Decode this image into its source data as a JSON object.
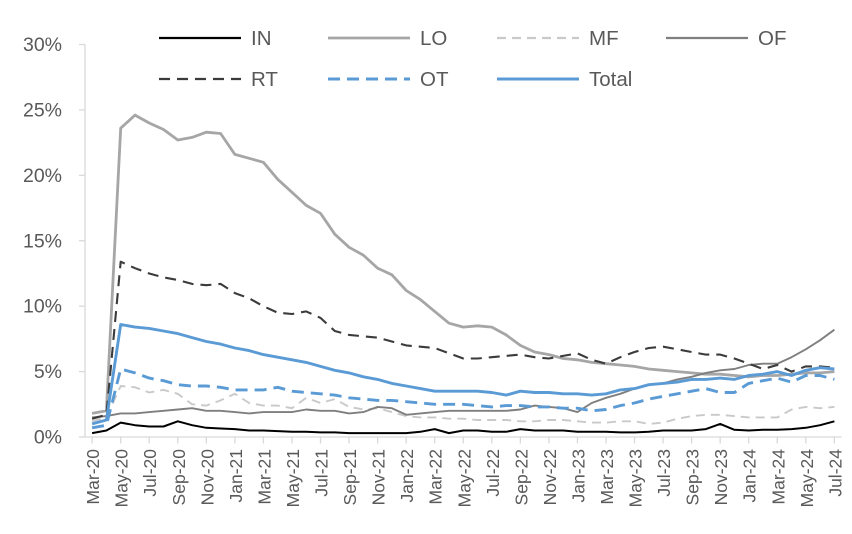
{
  "page": {
    "background": "#FFFFFF"
  },
  "colors": {
    "axis_line": "#D9D9D9",
    "tick_label": "#595959",
    "legend_label": "#595959"
  },
  "chart_data": {
    "type": "line",
    "title": "",
    "xlabel": "",
    "ylabel": "",
    "ylim": [
      0,
      30
    ],
    "yticks": [
      0,
      5,
      10,
      15,
      20,
      25,
      30
    ],
    "ytick_suffix": "%",
    "grid": false,
    "legend_position": "top",
    "legend_rows": [
      [
        "IN",
        "LO",
        "MF",
        "OF"
      ],
      [
        "RT",
        "OT",
        "Total"
      ]
    ],
    "x_label_every": 2,
    "categories": [
      "Mar-20",
      "Apr-20",
      "May-20",
      "Jun-20",
      "Jul-20",
      "Aug-20",
      "Sep-20",
      "Oct-20",
      "Nov-20",
      "Dec-20",
      "Jan-21",
      "Feb-21",
      "Mar-21",
      "Apr-21",
      "May-21",
      "Jun-21",
      "Jul-21",
      "Aug-21",
      "Sep-21",
      "Oct-21",
      "Nov-21",
      "Dec-21",
      "Jan-22",
      "Feb-22",
      "Mar-22",
      "Apr-22",
      "May-22",
      "Jun-22",
      "Jul-22",
      "Aug-22",
      "Sep-22",
      "Oct-22",
      "Nov-22",
      "Dec-22",
      "Jan-23",
      "Feb-23",
      "Mar-23",
      "Apr-23",
      "May-23",
      "Jun-23",
      "Jul-23",
      "Aug-23",
      "Sep-23",
      "Oct-23",
      "Nov-23",
      "Dec-23",
      "Jan-24",
      "Feb-24",
      "Mar-24",
      "Apr-24",
      "May-24",
      "Jun-24",
      "Jul-24"
    ],
    "series": [
      {
        "name": "IN",
        "color": "#000000",
        "width": 2,
        "dash": null,
        "values": [
          0.3,
          0.5,
          1.1,
          0.9,
          0.8,
          0.8,
          1.2,
          0.9,
          0.7,
          0.65,
          0.6,
          0.5,
          0.5,
          0.45,
          0.4,
          0.4,
          0.35,
          0.35,
          0.3,
          0.3,
          0.3,
          0.3,
          0.3,
          0.4,
          0.6,
          0.3,
          0.5,
          0.5,
          0.4,
          0.4,
          0.6,
          0.5,
          0.5,
          0.5,
          0.4,
          0.4,
          0.4,
          0.35,
          0.35,
          0.4,
          0.5,
          0.5,
          0.5,
          0.6,
          1.0,
          0.55,
          0.5,
          0.55,
          0.55,
          0.6,
          0.7,
          0.9,
          1.2
        ]
      },
      {
        "name": "LO",
        "color": "#A6A6A6",
        "width": 2.8,
        "dash": null,
        "values": [
          1.8,
          2.0,
          23.6,
          24.6,
          24.0,
          23.5,
          22.7,
          22.9,
          23.3,
          23.2,
          21.6,
          21.3,
          21.0,
          19.7,
          18.7,
          17.7,
          17.1,
          15.5,
          14.5,
          13.9,
          12.9,
          12.4,
          11.2,
          10.5,
          9.6,
          8.7,
          8.4,
          8.5,
          8.4,
          7.8,
          7.0,
          6.5,
          6.3,
          6.0,
          5.9,
          5.7,
          5.6,
          5.5,
          5.4,
          5.2,
          5.1,
          5.0,
          4.9,
          4.8,
          4.8,
          4.7,
          4.6,
          4.7,
          4.7,
          4.8,
          4.9,
          4.9,
          5.0
        ]
      },
      {
        "name": "MF",
        "color": "#C9C9C9",
        "width": 1.9,
        "dash": "9 6",
        "values": [
          1.2,
          1.5,
          3.9,
          3.8,
          3.4,
          3.6,
          3.3,
          2.5,
          2.4,
          2.8,
          3.3,
          2.6,
          2.4,
          2.4,
          2.2,
          3.0,
          2.6,
          2.9,
          2.3,
          2.1,
          2.2,
          1.9,
          1.6,
          1.5,
          1.5,
          1.4,
          1.4,
          1.3,
          1.3,
          1.3,
          1.2,
          1.2,
          1.3,
          1.3,
          1.2,
          1.1,
          1.1,
          1.2,
          1.2,
          1.0,
          1.1,
          1.4,
          1.6,
          1.7,
          1.7,
          1.6,
          1.5,
          1.5,
          1.5,
          2.1,
          2.3,
          2.2,
          2.3
        ]
      },
      {
        "name": "OF",
        "color": "#7F7F7F",
        "width": 1.9,
        "dash": null,
        "values": [
          1.5,
          1.6,
          1.8,
          1.8,
          1.9,
          2.0,
          2.1,
          2.2,
          2.0,
          2.0,
          1.9,
          1.8,
          1.9,
          1.9,
          1.9,
          2.1,
          2.0,
          2.0,
          1.8,
          1.9,
          2.3,
          2.2,
          1.7,
          1.8,
          1.9,
          2.0,
          2.0,
          2.0,
          2.0,
          2.0,
          2.1,
          2.4,
          2.3,
          2.2,
          1.9,
          2.6,
          3.0,
          3.3,
          3.7,
          4.0,
          4.1,
          4.4,
          4.6,
          4.9,
          5.1,
          5.2,
          5.5,
          5.6,
          5.6,
          6.1,
          6.7,
          7.4,
          8.2
        ]
      },
      {
        "name": "RT",
        "color": "#3B3B3B",
        "width": 2.1,
        "dash": "11 7",
        "values": [
          1.4,
          1.7,
          13.4,
          12.9,
          12.5,
          12.2,
          12.0,
          11.7,
          11.6,
          11.7,
          11.0,
          10.6,
          10.0,
          9.5,
          9.4,
          9.6,
          9.1,
          8.1,
          7.8,
          7.7,
          7.6,
          7.3,
          7.0,
          6.9,
          6.8,
          6.4,
          6.0,
          6.0,
          6.1,
          6.2,
          6.3,
          6.1,
          6.0,
          6.2,
          6.4,
          5.9,
          5.6,
          6.1,
          6.5,
          6.8,
          6.9,
          6.7,
          6.5,
          6.3,
          6.3,
          6.0,
          5.6,
          5.2,
          5.5,
          5.0,
          5.4,
          5.4,
          5.3
        ]
      },
      {
        "name": "OT",
        "color": "#5B9BD5",
        "width": 2.9,
        "dash": "12 7",
        "values": [
          0.7,
          0.9,
          5.2,
          4.9,
          4.5,
          4.3,
          4.0,
          3.9,
          3.9,
          3.8,
          3.6,
          3.6,
          3.6,
          3.8,
          3.5,
          3.4,
          3.3,
          3.2,
          3.0,
          2.9,
          2.8,
          2.8,
          2.7,
          2.6,
          2.5,
          2.5,
          2.5,
          2.4,
          2.3,
          2.4,
          2.4,
          2.3,
          2.3,
          2.2,
          2.2,
          2.0,
          2.1,
          2.4,
          2.6,
          2.9,
          3.1,
          3.3,
          3.5,
          3.7,
          3.4,
          3.4,
          4.1,
          4.3,
          4.5,
          4.2,
          4.7,
          4.7,
          4.4
        ]
      },
      {
        "name": "Total",
        "color": "#5B9BD5",
        "width": 2.9,
        "dash": null,
        "values": [
          1.0,
          1.3,
          8.6,
          8.4,
          8.3,
          8.1,
          7.9,
          7.6,
          7.3,
          7.1,
          6.8,
          6.6,
          6.3,
          6.1,
          5.9,
          5.7,
          5.4,
          5.1,
          4.9,
          4.6,
          4.4,
          4.1,
          3.9,
          3.7,
          3.5,
          3.5,
          3.5,
          3.5,
          3.4,
          3.2,
          3.5,
          3.4,
          3.4,
          3.3,
          3.3,
          3.2,
          3.3,
          3.6,
          3.7,
          4.0,
          4.1,
          4.2,
          4.4,
          4.4,
          4.5,
          4.4,
          4.7,
          4.8,
          5.0,
          4.7,
          5.1,
          5.3,
          5.2
        ]
      }
    ]
  }
}
